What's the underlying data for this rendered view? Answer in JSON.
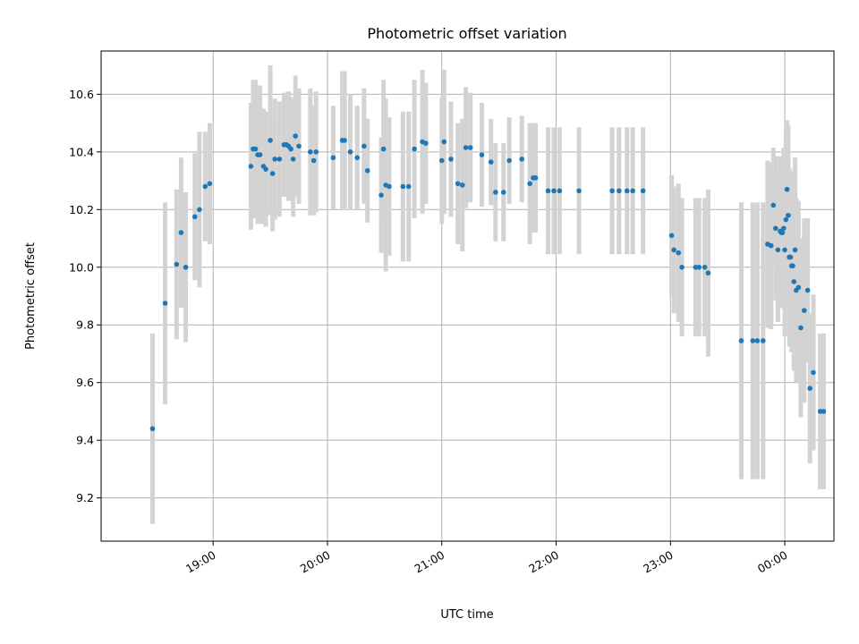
{
  "chart_data": {
    "type": "scatter",
    "title": "Photometric offset variation",
    "xlabel": "UTC time",
    "ylabel": "Photometric offset",
    "xlim_min": [
      18.02,
      0.56
    ],
    "x_ticks": [
      {
        "label": "19:00",
        "value": 19.0
      },
      {
        "label": "20:00",
        "value": 20.0
      },
      {
        "label": "21:00",
        "value": 21.0
      },
      {
        "label": "22:00",
        "value": 22.0
      },
      {
        "label": "23:00",
        "value": 23.0
      },
      {
        "label": "00:00",
        "value": 24.0
      }
    ],
    "ylim": [
      9.05,
      10.75
    ],
    "y_ticks": [
      9.2,
      9.4,
      9.6,
      9.8,
      10.0,
      10.2,
      10.4,
      10.6
    ],
    "grid": true,
    "colors": {
      "points": "#1f77b4",
      "errorbars": "#d3d3d3"
    },
    "series": [
      {
        "x": [
          18.47,
          18.58,
          18.68,
          18.72,
          18.76,
          18.84,
          18.88,
          18.93,
          18.97,
          19.33,
          19.35,
          19.37,
          19.39,
          19.41,
          19.44,
          19.46,
          19.5,
          19.52,
          19.54,
          19.58,
          19.62,
          19.64,
          19.66,
          19.68,
          19.7,
          19.72,
          19.75,
          19.85,
          19.88,
          19.9,
          20.05,
          20.13,
          20.15,
          20.2,
          20.26,
          20.32,
          20.35,
          20.47,
          20.49,
          20.51,
          20.54,
          20.66,
          20.71,
          20.76,
          20.83,
          20.86,
          21.0,
          21.02,
          21.08,
          21.14,
          21.18,
          21.21,
          21.25,
          21.35,
          21.43,
          21.47,
          21.54,
          21.59,
          21.7,
          21.77,
          21.8,
          21.82,
          21.93,
          21.98,
          22.03,
          22.2,
          22.49,
          22.55,
          22.62,
          22.67,
          22.76,
          23.01,
          23.03,
          23.07,
          23.1,
          23.22,
          23.25,
          23.3,
          23.33,
          23.62,
          23.72,
          23.76,
          23.81,
          23.85,
          23.88,
          23.9,
          23.92,
          23.94,
          23.96,
          23.97,
          23.98,
          23.99,
          24.0,
          24.01,
          24.02,
          24.03,
          24.04,
          24.05,
          24.06,
          24.07,
          24.08,
          24.09,
          24.1,
          24.12,
          24.14,
          24.17,
          24.2,
          24.22,
          24.25,
          24.31,
          24.34
        ],
        "y": [
          9.44,
          9.875,
          10.01,
          10.12,
          10.0,
          10.175,
          10.2,
          10.28,
          10.29,
          10.35,
          10.41,
          10.41,
          10.39,
          10.39,
          10.35,
          10.34,
          10.44,
          10.325,
          10.375,
          10.375,
          10.425,
          10.425,
          10.42,
          10.41,
          10.375,
          10.455,
          10.42,
          10.4,
          10.37,
          10.4,
          10.38,
          10.44,
          10.44,
          10.4,
          10.38,
          10.42,
          10.335,
          10.25,
          10.41,
          10.285,
          10.28,
          10.28,
          10.28,
          10.41,
          10.435,
          10.43,
          10.37,
          10.435,
          10.375,
          10.29,
          10.285,
          10.415,
          10.415,
          10.39,
          10.365,
          10.26,
          10.26,
          10.37,
          10.375,
          10.29,
          10.31,
          10.31,
          10.265,
          10.265,
          10.265,
          10.265,
          10.265,
          10.265,
          10.265,
          10.265,
          10.265,
          10.11,
          10.06,
          10.05,
          10.0,
          10.0,
          10.0,
          10.0,
          9.98,
          9.745,
          9.745,
          9.745,
          9.745,
          10.08,
          10.075,
          10.215,
          10.135,
          10.06,
          10.125,
          10.12,
          10.12,
          10.135,
          10.06,
          10.165,
          10.27,
          10.18,
          10.035,
          10.035,
          10.005,
          10.005,
          9.95,
          10.06,
          9.92,
          9.93,
          9.79,
          9.85,
          9.92,
          9.58,
          9.635,
          9.5,
          9.5
        ],
        "yerr": [
          0.33,
          0.35,
          0.26,
          0.26,
          0.26,
          0.22,
          0.27,
          0.19,
          0.21,
          0.22,
          0.24,
          0.24,
          0.24,
          0.24,
          0.2,
          0.2,
          0.26,
          0.2,
          0.21,
          0.2,
          0.18,
          0.18,
          0.19,
          0.18,
          0.2,
          0.21,
          0.2,
          0.22,
          0.19,
          0.21,
          0.18,
          0.24,
          0.24,
          0.2,
          0.18,
          0.2,
          0.18,
          0.2,
          0.24,
          0.3,
          0.24,
          0.26,
          0.26,
          0.24,
          0.25,
          0.21,
          0.22,
          0.25,
          0.2,
          0.21,
          0.23,
          0.21,
          0.19,
          0.18,
          0.15,
          0.17,
          0.17,
          0.15,
          0.15,
          0.21,
          0.19,
          0.19,
          0.22,
          0.22,
          0.22,
          0.22,
          0.22,
          0.22,
          0.22,
          0.22,
          0.22,
          0.21,
          0.22,
          0.24,
          0.24,
          0.24,
          0.24,
          0.24,
          0.29,
          0.48,
          0.48,
          0.48,
          0.48,
          0.29,
          0.29,
          0.2,
          0.25,
          0.25,
          0.26,
          0.25,
          0.26,
          0.28,
          0.3,
          0.3,
          0.24,
          0.31,
          0.31,
          0.3,
          0.3,
          0.3,
          0.31,
          0.32,
          0.32,
          0.3,
          0.31,
          0.32,
          0.25,
          0.26,
          0.27,
          0.27,
          0.27
        ]
      }
    ]
  }
}
